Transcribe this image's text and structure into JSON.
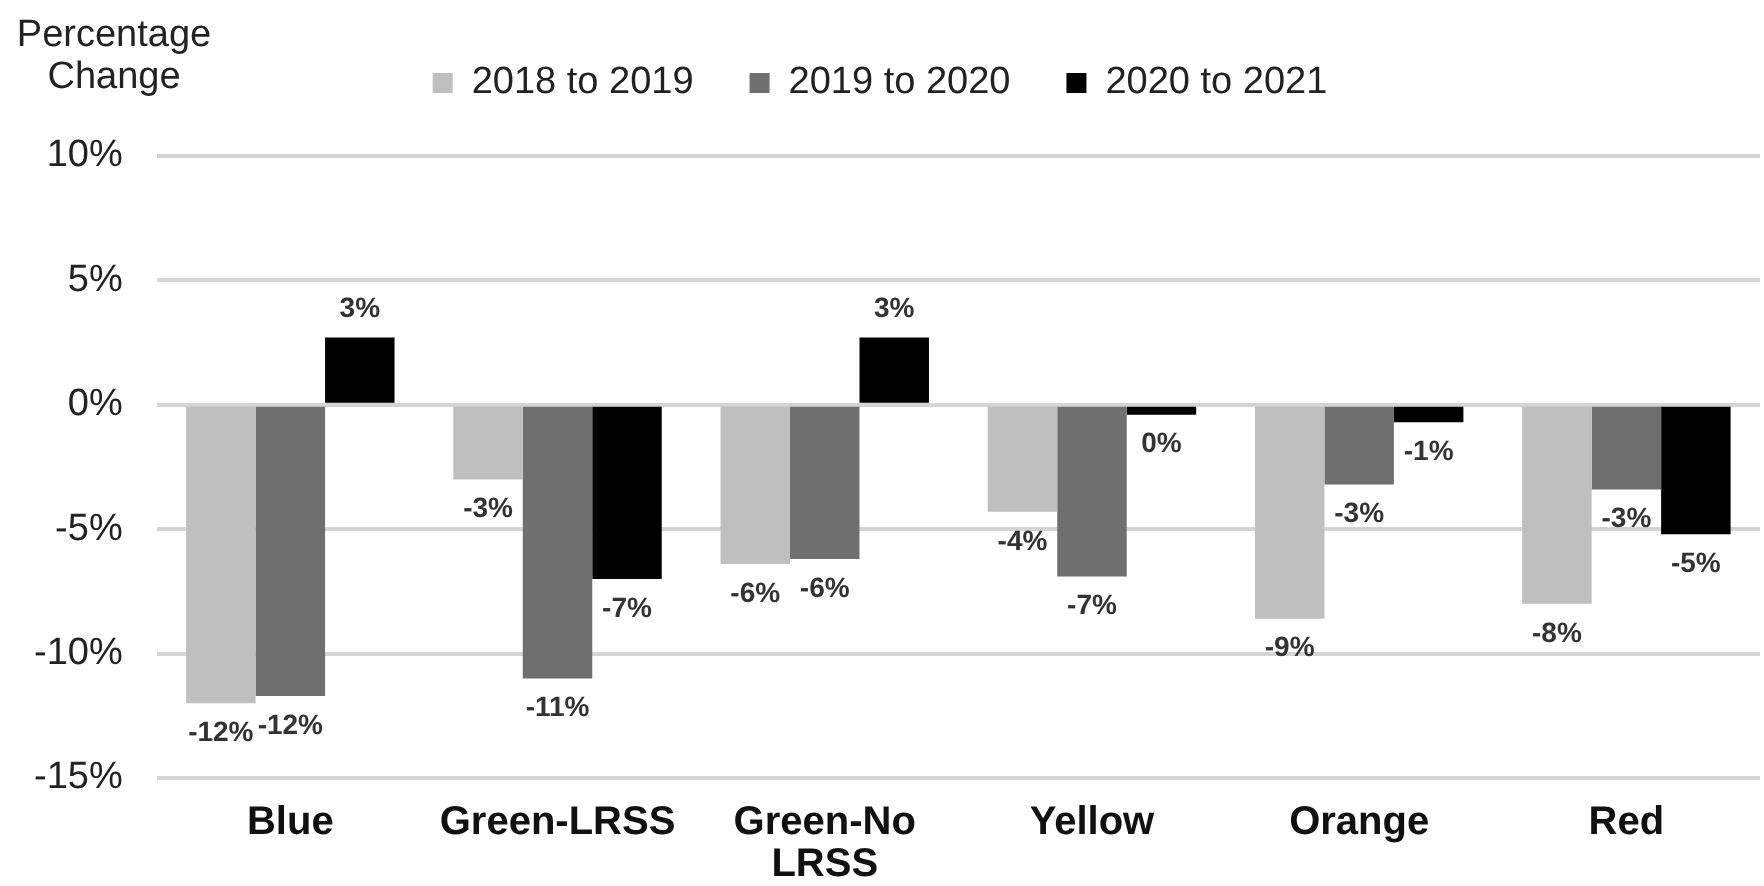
{
  "chart_data": {
    "type": "bar",
    "ylabel": "Percentage Change",
    "categories": [
      "Blue",
      "Green-LRSS",
      "Green-No LRSS",
      "Yellow",
      "Orange",
      "Red"
    ],
    "series": [
      {
        "name": "2018 to 2019",
        "color": "#bfbfbf",
        "values": [
          -12.0,
          -3.0,
          -6.4,
          -4.3,
          -8.6,
          -8.0
        ],
        "value_labels": [
          "-12%",
          "-3%",
          "-6%",
          "-4%",
          "-9%",
          "-8%"
        ]
      },
      {
        "name": "2019 to 2020",
        "color": "#6f6f6f",
        "values": [
          -11.7,
          -11.0,
          -6.2,
          -6.9,
          -3.2,
          -3.4
        ],
        "value_labels": [
          "-12%",
          "-11%",
          "-6%",
          "-7%",
          "-3%",
          "-3%"
        ]
      },
      {
        "name": "2020 to 2021",
        "color": "#000000",
        "values": [
          2.7,
          -7.0,
          2.7,
          -0.4,
          -0.7,
          -5.2
        ],
        "value_labels": [
          "3%",
          "-7%",
          "3%",
          "0%",
          "-1%",
          "-5%"
        ]
      }
    ],
    "ylim": [
      -15,
      10
    ],
    "yticks": [
      {
        "value": -15,
        "label": "-15%"
      },
      {
        "value": -10,
        "label": "-10%"
      },
      {
        "value": -5,
        "label": "-5%"
      },
      {
        "value": 0,
        "label": "0%"
      },
      {
        "value": 5,
        "label": "5%"
      },
      {
        "value": 10,
        "label": "10%"
      }
    ],
    "grid": "y",
    "legend": "top"
  }
}
